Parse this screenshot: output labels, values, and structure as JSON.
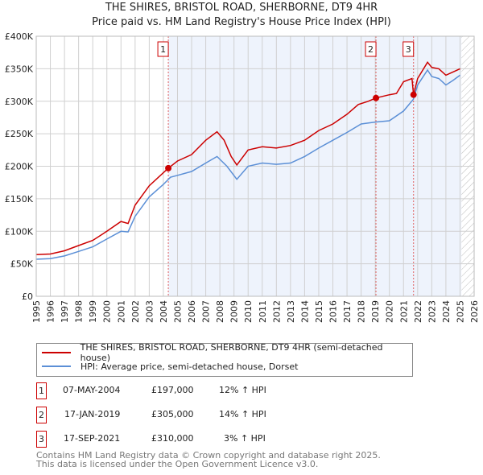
{
  "chart_data": {
    "type": "line",
    "title": "THE SHIRES, BRISTOL ROAD, SHERBORNE, DT9 4HR",
    "subtitle": "Price paid vs. HM Land Registry's House Price Index (HPI)",
    "xlim": [
      1995,
      2026
    ],
    "ylim": [
      0,
      400000
    ],
    "x_ticks": [
      "1995",
      "1996",
      "1997",
      "1998",
      "1999",
      "2000",
      "2001",
      "2002",
      "2003",
      "2004",
      "2005",
      "2006",
      "2007",
      "2008",
      "2009",
      "2010",
      "2011",
      "2012",
      "2013",
      "2014",
      "2015",
      "2016",
      "2017",
      "2018",
      "2019",
      "2020",
      "2021",
      "2022",
      "2023",
      "2024",
      "2025",
      "2026"
    ],
    "y_ticks": [
      {
        "v": 0,
        "l": "£0"
      },
      {
        "v": 50000,
        "l": "£50K"
      },
      {
        "v": 100000,
        "l": "£100K"
      },
      {
        "v": 150000,
        "l": "£150K"
      },
      {
        "v": 200000,
        "l": "£200K"
      },
      {
        "v": 250000,
        "l": "£250K"
      },
      {
        "v": 300000,
        "l": "£300K"
      },
      {
        "v": 350000,
        "l": "£350K"
      },
      {
        "v": 400000,
        "l": "£400K"
      }
    ],
    "series": [
      {
        "name": "THE SHIRES, BRISTOL ROAD, SHERBORNE, DT9 4HR (semi-detached house)",
        "color": "#cc0000",
        "x": [
          1995,
          1996,
          1997,
          1998,
          1999,
          2000,
          2001,
          2001.5,
          2002,
          2003,
          2004,
          2004.35,
          2005,
          2006,
          2007,
          2007.8,
          2008.3,
          2008.8,
          2009.2,
          2010,
          2011,
          2012,
          2013,
          2014,
          2015,
          2016,
          2017,
          2017.8,
          2018.5,
          2019.05,
          2020,
          2020.5,
          2021,
          2021.6,
          2021.71,
          2022,
          2022.7,
          2023,
          2023.5,
          2024,
          2024.5,
          2025
        ],
        "y": [
          64000,
          65000,
          70000,
          78000,
          86000,
          100000,
          115000,
          112000,
          140000,
          170000,
          190000,
          197000,
          208000,
          218000,
          240000,
          253000,
          240000,
          215000,
          202000,
          225000,
          230000,
          228000,
          232000,
          240000,
          255000,
          265000,
          280000,
          295000,
          300000,
          305000,
          310000,
          312000,
          330000,
          335000,
          310000,
          335000,
          360000,
          352000,
          350000,
          340000,
          345000,
          350000
        ]
      },
      {
        "name": "HPI: Average price, semi-detached house, Dorset",
        "color": "#5b8fd6",
        "x": [
          1995,
          1996,
          1997,
          1998,
          1999,
          2000,
          2001,
          2001.5,
          2002,
          2003,
          2004,
          2004.5,
          2005,
          2006,
          2007,
          2007.8,
          2008.5,
          2009.2,
          2010,
          2011,
          2012,
          2013,
          2014,
          2015,
          2016,
          2017,
          2018,
          2019,
          2020,
          2021,
          2021.7,
          2022,
          2022.7,
          2023,
          2023.5,
          2024,
          2024.5,
          2025
        ],
        "y": [
          57000,
          58000,
          62000,
          69000,
          76000,
          88000,
          100000,
          99000,
          123000,
          153000,
          172000,
          183000,
          186000,
          192000,
          205000,
          215000,
          200000,
          180000,
          200000,
          205000,
          203000,
          205000,
          215000,
          228000,
          240000,
          252000,
          265000,
          268000,
          270000,
          285000,
          303000,
          325000,
          348000,
          338000,
          335000,
          325000,
          332000,
          340000
        ]
      }
    ],
    "sales": [
      {
        "n": "1",
        "x": 2004.35,
        "y": 197000,
        "date": "07-MAY-2004",
        "price": "£197,000",
        "hpi": "12% ↑ HPI"
      },
      {
        "n": "2",
        "x": 2019.05,
        "y": 305000,
        "date": "17-JAN-2019",
        "price": "£305,000",
        "hpi": "14% ↑ HPI"
      },
      {
        "n": "3",
        "x": 2021.71,
        "y": 310000,
        "date": "17-SEP-2021",
        "price": "£310,000",
        "hpi": "3% ↑ HPI"
      }
    ],
    "shade_from": 2004.35,
    "hatch_from": 2025.1,
    "legend_placement": "below"
  },
  "footer": [
    "Contains HM Land Registry data © Crown copyright and database right 2025.",
    "This data is licensed under the Open Government Licence v3.0."
  ]
}
